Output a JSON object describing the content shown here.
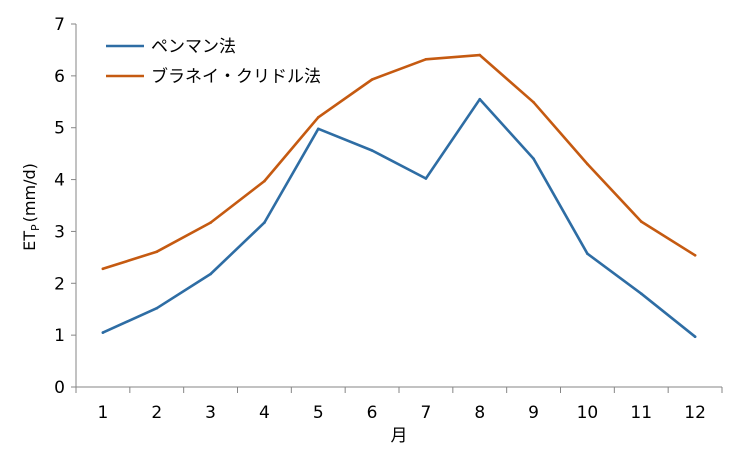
{
  "chart_data": {
    "type": "line",
    "xlabel": "月",
    "ylabel": "ET",
    "ylabel_subscript": "P",
    "ylabel_unit": "(mm/d)",
    "categories": [
      "1",
      "2",
      "3",
      "4",
      "5",
      "6",
      "7",
      "8",
      "9",
      "10",
      "11",
      "12"
    ],
    "ylim": [
      0,
      7
    ],
    "yticks": [
      "0",
      "1",
      "2",
      "3",
      "4",
      "5",
      "6",
      "7"
    ],
    "grid": false,
    "legend_position": "top-left",
    "series": [
      {
        "name": "ペンマン法",
        "color": "#2e6da4",
        "values": [
          1.05,
          1.52,
          2.18,
          3.17,
          4.98,
          4.56,
          4.02,
          5.55,
          4.4,
          2.57,
          1.8,
          0.97
        ]
      },
      {
        "name": "ブラネイ・クリドル法",
        "color": "#c55a11",
        "values": [
          2.28,
          2.61,
          3.17,
          3.97,
          5.2,
          5.93,
          6.32,
          6.4,
          5.49,
          4.3,
          3.19,
          2.54
        ]
      }
    ]
  }
}
